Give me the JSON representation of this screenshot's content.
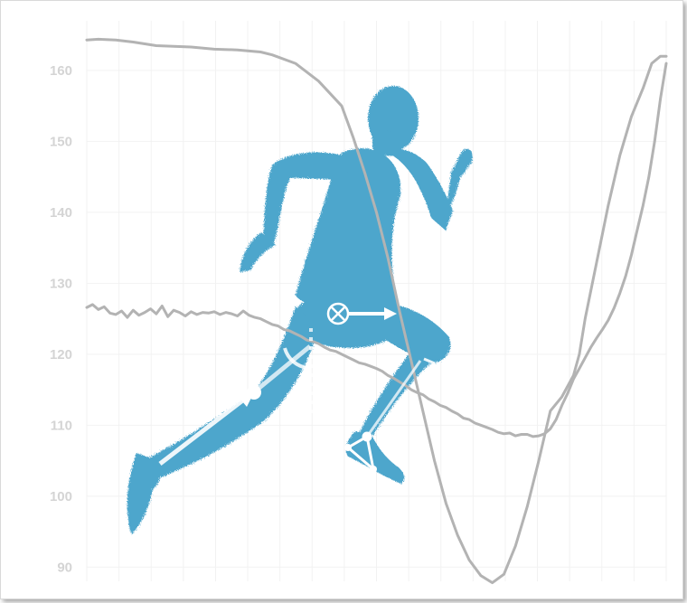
{
  "colors": {
    "figure": "#4ea6cc",
    "overlay": "#ffffff",
    "curve": "#b3b3b3",
    "grid": "#f2f2f2",
    "tick": "#d4d4d4"
  },
  "chart_data": {
    "type": "line",
    "title": "",
    "xlabel": "",
    "ylabel": "",
    "ylim": [
      88,
      167
    ],
    "xlim": [
      0,
      100
    ],
    "yticks": [
      90,
      100,
      110,
      120,
      130,
      140,
      150,
      160
    ],
    "grid": true,
    "legend": "none",
    "series": [
      {
        "x": [
          0,
          2,
          5,
          8,
          12,
          18,
          22,
          26,
          30,
          32,
          36,
          40,
          44,
          46,
          48,
          50,
          52,
          54,
          56,
          58,
          60,
          62,
          64,
          66,
          68,
          70,
          72,
          74,
          76,
          78,
          80,
          82,
          84,
          85,
          86,
          88,
          90,
          92,
          94,
          96,
          97.5,
          99,
          100
        ],
        "values": [
          164.3,
          164.4,
          164.3,
          164.0,
          163.5,
          163.3,
          163.0,
          162.9,
          162.6,
          162.2,
          161.0,
          158.5,
          155.0,
          150.5,
          145.5,
          140.0,
          133.5,
          126.0,
          119.0,
          112.0,
          105.0,
          99.0,
          94.5,
          91.0,
          88.8,
          87.8,
          89.0,
          93.0,
          98.5,
          105.0,
          112.0,
          114.0,
          117.0,
          120.0,
          125.0,
          133.0,
          141.0,
          148.0,
          153.5,
          157.5,
          161.0,
          162.0,
          162.0
        ]
      },
      {
        "x": [
          0,
          1,
          2,
          3,
          4,
          5,
          6,
          7,
          8,
          9,
          10,
          11,
          12,
          13,
          14,
          15,
          16,
          17,
          18,
          19,
          20,
          21,
          22,
          23,
          24,
          25,
          26,
          27,
          28,
          29,
          30,
          31,
          32,
          33,
          34,
          35,
          36,
          37,
          38,
          39,
          40,
          41,
          42,
          43,
          44,
          45,
          46,
          47,
          48,
          49,
          50,
          51,
          52,
          53,
          54,
          55,
          56,
          57,
          58,
          59,
          60,
          61,
          62,
          63,
          64,
          65,
          66,
          67,
          68,
          69,
          70,
          71,
          72,
          73,
          74,
          75,
          76,
          77,
          78,
          79,
          80,
          81,
          82,
          83,
          84,
          85,
          86,
          87,
          88,
          89,
          90,
          91,
          92,
          93,
          94,
          95,
          96,
          97,
          98,
          99,
          100
        ],
        "values": [
          126.6,
          127.0,
          126.3,
          126.7,
          125.8,
          125.6,
          126.1,
          125.2,
          126.2,
          125.5,
          125.9,
          126.4,
          125.7,
          126.8,
          125.3,
          126.2,
          125.9,
          125.4,
          126.0,
          125.6,
          125.9,
          125.8,
          126.0,
          125.6,
          125.9,
          125.7,
          125.4,
          126.1,
          125.5,
          125.2,
          125.0,
          124.6,
          124.2,
          124.0,
          123.5,
          123.3,
          122.9,
          122.5,
          122.0,
          121.8,
          121.5,
          121.0,
          120.6,
          120.4,
          120.0,
          119.6,
          119.2,
          118.8,
          118.6,
          118.3,
          118.0,
          117.6,
          117.0,
          116.6,
          116.1,
          115.6,
          115.0,
          114.6,
          114.3,
          113.7,
          113.3,
          112.8,
          112.5,
          112.0,
          111.6,
          111.0,
          110.8,
          110.3,
          110.0,
          109.7,
          109.4,
          109.0,
          108.8,
          108.9,
          108.5,
          108.7,
          108.7,
          108.4,
          108.5,
          108.8,
          109.5,
          110.8,
          112.8,
          114.5,
          116.5,
          118.0,
          119.5,
          121.0,
          122.3,
          123.5,
          124.8,
          126.5,
          128.6,
          131.0,
          134.0,
          137.5,
          141.0,
          145.0,
          150.0,
          156.0,
          161.0
        ]
      }
    ]
  }
}
